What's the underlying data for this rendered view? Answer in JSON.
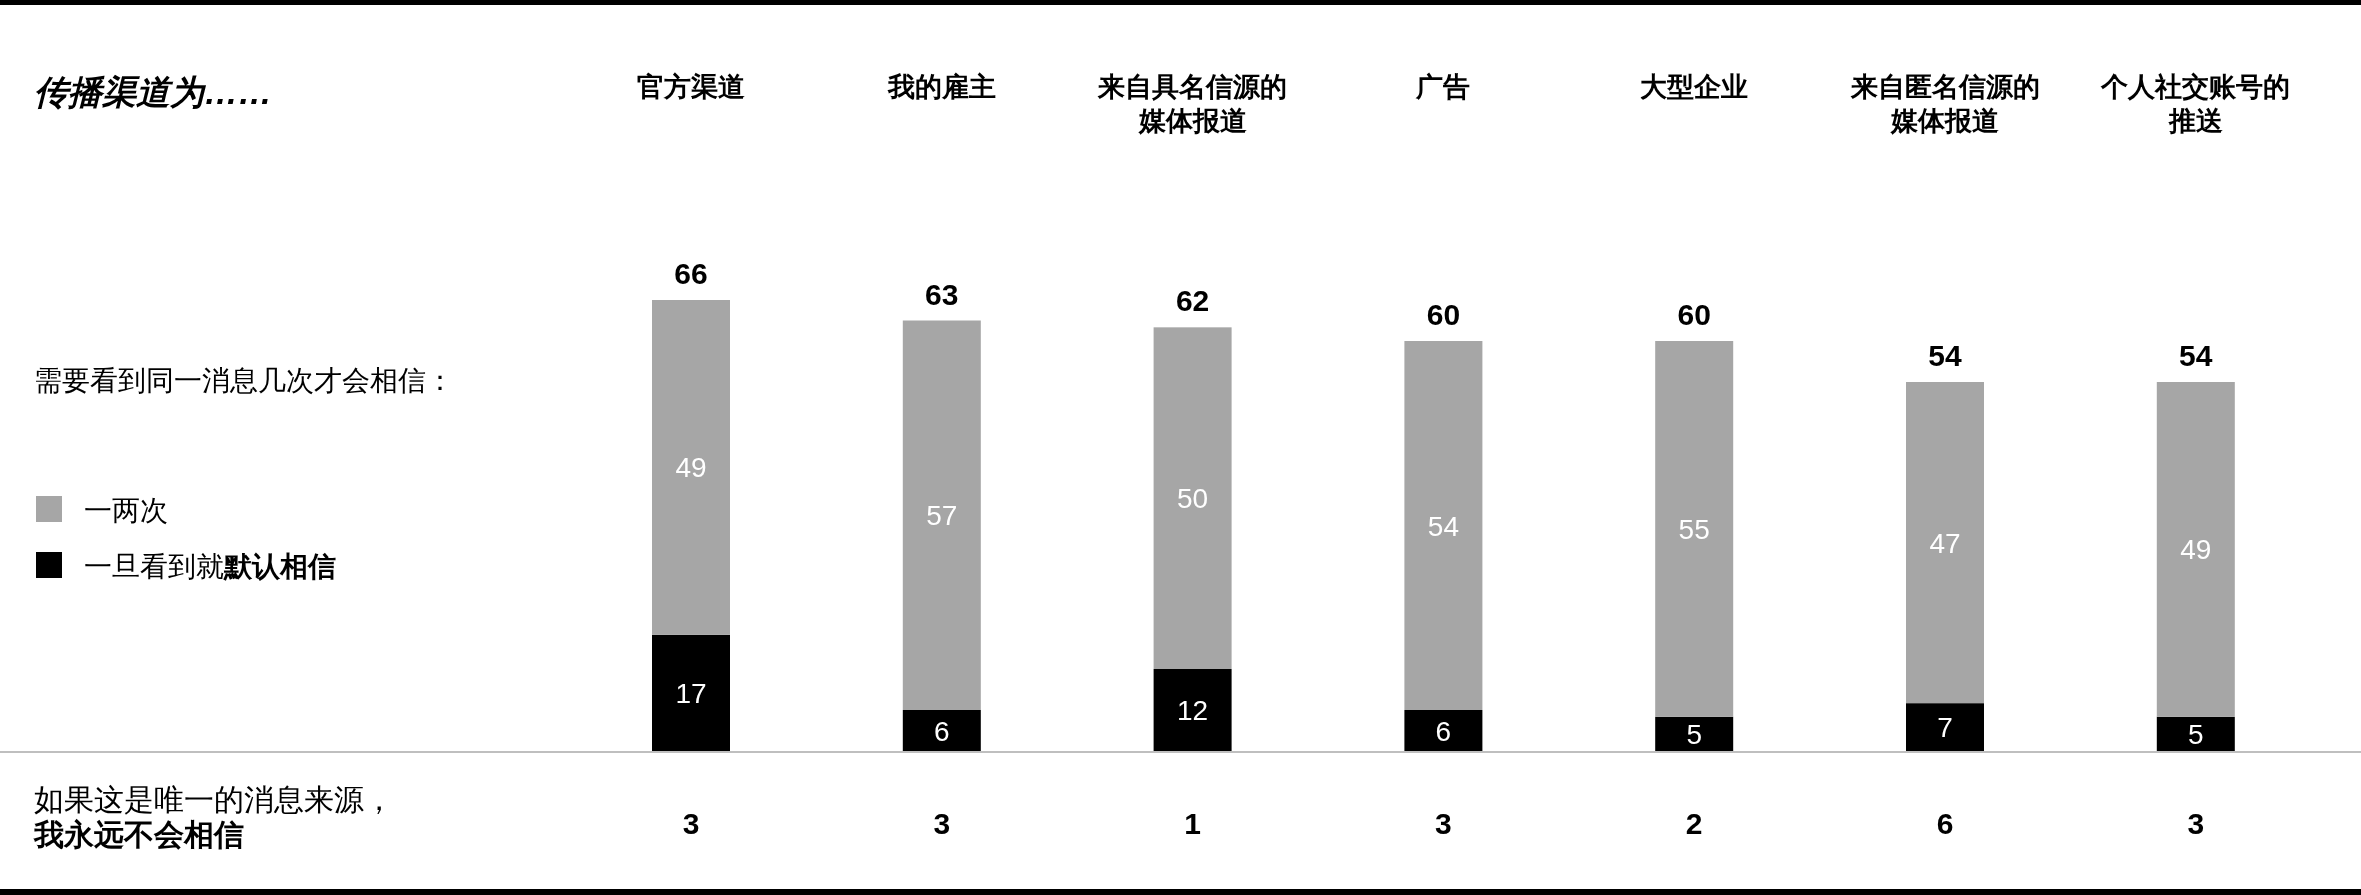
{
  "chart_data": {
    "type": "bar",
    "stacked": true,
    "title": "传播渠道为……",
    "legend_title": "需要看到同一消息几次才会相信：",
    "legend": "left",
    "data_labels": true,
    "categories": [
      "官方渠道",
      "我的雇主",
      "来自具名信源的媒体报道",
      "广告",
      "大型企业",
      "来自匿名信源的媒体报道",
      "个人社交账号的推送"
    ],
    "series": [
      {
        "name": "一旦看到就**默认相信**",
        "color": "#000000",
        "values": [
          17,
          6,
          12,
          6,
          5,
          7,
          5
        ]
      },
      {
        "name": "一两次",
        "color": "#a6a6a6",
        "values": [
          49,
          57,
          50,
          54,
          55,
          47,
          49
        ]
      }
    ],
    "totals": [
      "66",
      "63",
      "62",
      "60",
      "60",
      "54",
      "54"
    ],
    "annotations": [
      "如果这是唯一的消息来源，**我永远不会相信**",
      "3",
      "3",
      "1",
      "3",
      "2",
      "6",
      "3"
    ]
  }
}
